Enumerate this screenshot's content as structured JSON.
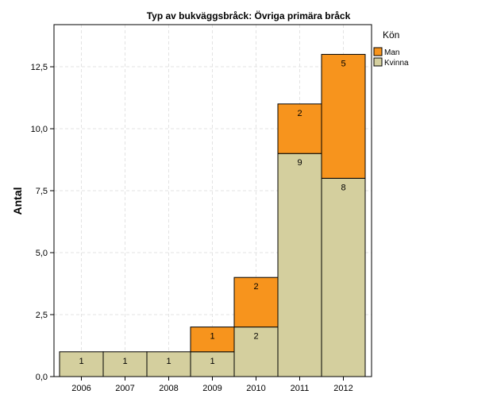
{
  "chart_data": {
    "type": "bar",
    "stacked": true,
    "title": "Typ av bukväggsbråck: Övriga primära bråck",
    "xlabel": "",
    "ylabel": "Antal",
    "categories": [
      "2006",
      "2007",
      "2008",
      "2009",
      "2010",
      "2011",
      "2012"
    ],
    "series": [
      {
        "name": "Kvinna",
        "values": [
          1,
          1,
          1,
          1,
          2,
          9,
          8
        ],
        "color": "#d4cf9e"
      },
      {
        "name": "Man",
        "values": [
          0,
          0,
          0,
          1,
          2,
          2,
          5
        ],
        "color": "#f7941d"
      }
    ],
    "ylim": [
      0,
      14.2
    ],
    "yticks": [
      0,
      2.5,
      5,
      7.5,
      10,
      12.5
    ],
    "ytick_labels": [
      "0,0",
      "2,5",
      "5,0",
      "7,5",
      "10,0",
      "12,5"
    ],
    "grid": true,
    "legend": {
      "title": "Kön",
      "placement": "right-top",
      "entries": [
        "Man",
        "Kvinna"
      ]
    }
  }
}
